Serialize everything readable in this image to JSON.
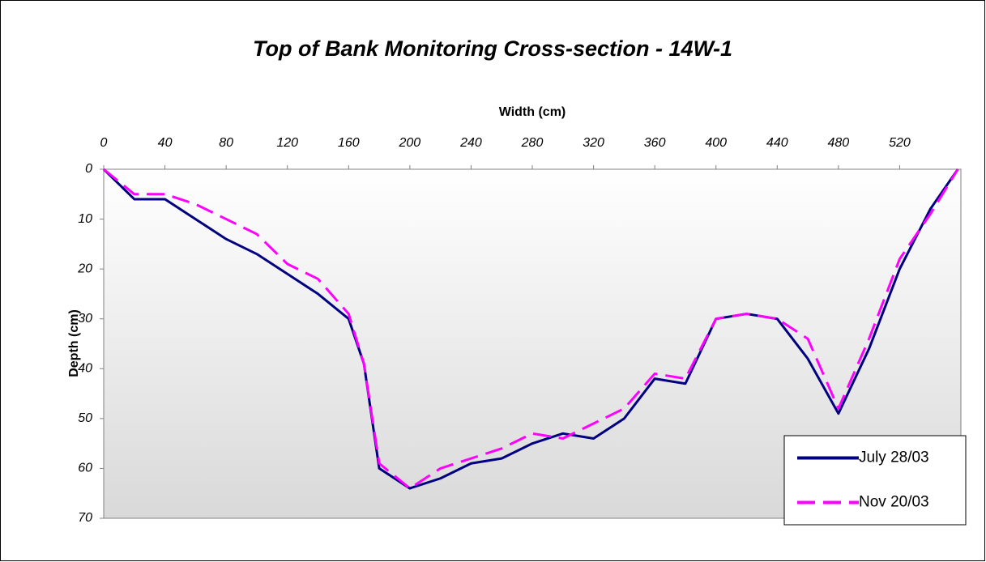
{
  "chart_data": {
    "type": "line",
    "title": "Top of Bank Monitoring Cross-section - 14W-1",
    "x_label": "Width (cm)",
    "y_label": "Depth (cm)",
    "x": [
      0,
      20,
      40,
      60,
      80,
      100,
      120,
      140,
      160,
      170,
      180,
      200,
      220,
      240,
      260,
      280,
      300,
      320,
      340,
      360,
      380,
      400,
      420,
      440,
      460,
      480,
      500,
      520,
      540,
      558
    ],
    "series": [
      {
        "name": "July 28/03",
        "color": "#000080",
        "dash": false,
        "values": [
          0,
          6,
          6,
          10,
          14,
          17,
          21,
          25,
          30,
          39,
          60,
          64,
          62,
          59,
          58,
          55,
          53,
          54,
          50,
          42,
          43,
          30,
          29,
          30,
          38,
          49,
          36,
          20,
          8,
          0
        ]
      },
      {
        "name": "Nov 20/03",
        "color": "#ff00ff",
        "dash": true,
        "values": [
          0,
          5,
          5,
          7,
          10,
          13,
          19,
          22,
          29,
          39,
          59,
          64,
          60,
          58,
          56,
          53,
          54,
          51,
          48,
          41,
          42,
          30,
          29,
          30,
          34,
          48,
          34,
          18,
          9,
          0
        ]
      }
    ],
    "xlim": [
      0,
      560
    ],
    "xticks": [
      0,
      40,
      80,
      120,
      160,
      200,
      240,
      280,
      320,
      360,
      400,
      440,
      480,
      520
    ],
    "ylim": [
      0,
      70
    ],
    "yticks": [
      0,
      10,
      20,
      30,
      40,
      50,
      60,
      70
    ],
    "y_inverted": true,
    "x_axis_position": "top",
    "grid": false,
    "legend": "lower right"
  }
}
